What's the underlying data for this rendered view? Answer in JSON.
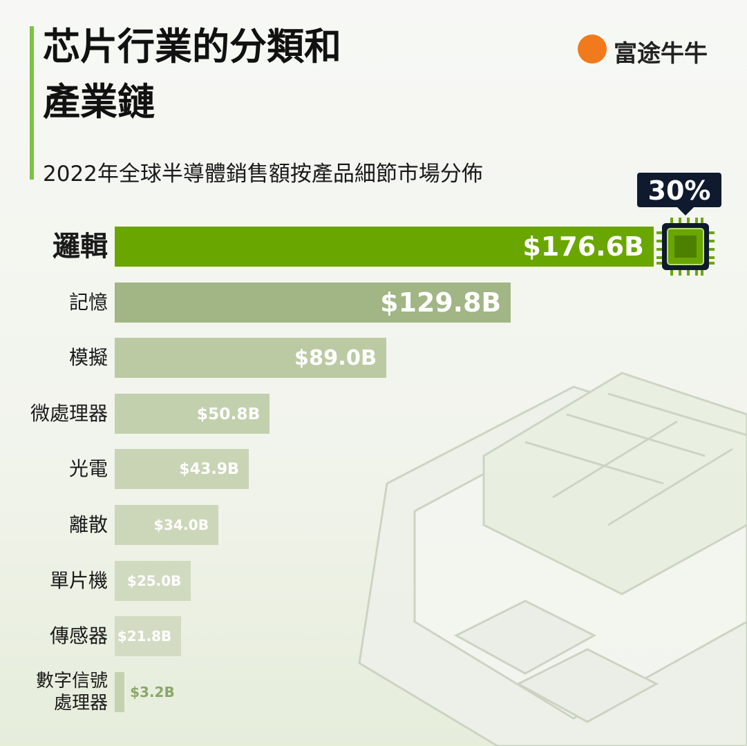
{
  "chart_data": {
    "type": "bar",
    "orientation": "horizontal",
    "title": "芯片行業的分類和產業鏈",
    "subtitle": "2022年全球半導體銷售額按產品細節市場分佈",
    "brand": "富途牛牛",
    "annotation": "30%",
    "categories": [
      "邏輯",
      "記憶",
      "模擬",
      "微處理器",
      "光電",
      "離散",
      "單片機",
      "傳感器",
      "數字信號處理器"
    ],
    "values": [
      176.6,
      129.8,
      89,
      50.8,
      43.9,
      34,
      25,
      21.8,
      3.2
    ],
    "value_labels": [
      "$176.6B",
      "$129.8B",
      "$89.0B",
      "$50.8B",
      "$43.9B",
      "$34.0B",
      "$25.0B",
      "$21.8B",
      "$3.2B"
    ],
    "colors": [
      "#6aa600",
      "#a2b585",
      "#bccaa4",
      "#c3d0ae",
      "#c8d4b3",
      "#ccd7b9",
      "#d0dabf",
      "#d3dcc3",
      "#c5d2b0"
    ]
  }
}
